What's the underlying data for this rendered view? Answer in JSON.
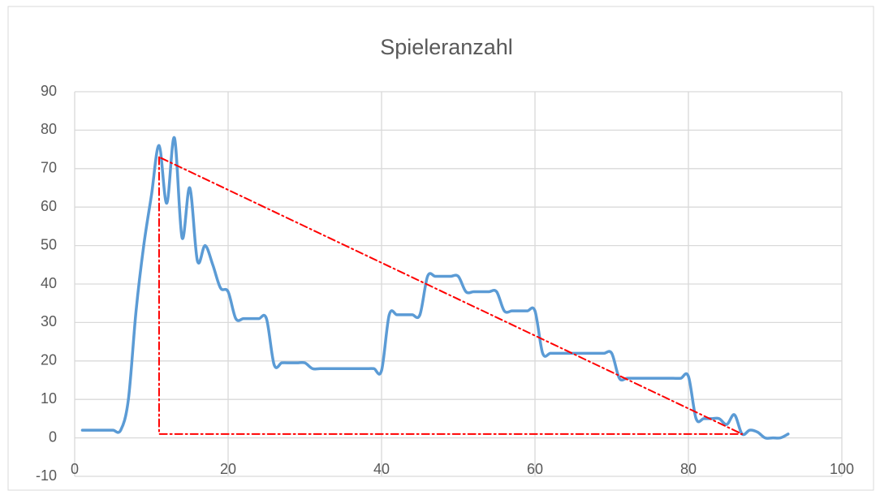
{
  "chart_data": {
    "type": "scatter",
    "title": "Spieleranzahl",
    "series": [
      {
        "color": "#5b9bd5",
        "smooth": true,
        "x": [
          1,
          2,
          3,
          4,
          5,
          6,
          7,
          8,
          9,
          10,
          11,
          12,
          13,
          14,
          15,
          16,
          17,
          18,
          19,
          20,
          21,
          22,
          23,
          24,
          25,
          26,
          27,
          28,
          29,
          30,
          31,
          32,
          33,
          34,
          35,
          36,
          37,
          38,
          39,
          40,
          41,
          42,
          43,
          44,
          45,
          46,
          47,
          48,
          49,
          50,
          51,
          52,
          53,
          54,
          55,
          56,
          57,
          58,
          59,
          60,
          61,
          62,
          63,
          64,
          65,
          66,
          67,
          68,
          69,
          70,
          71,
          72,
          73,
          74,
          75,
          76,
          77,
          78,
          79,
          80,
          81,
          82,
          83,
          84,
          85,
          86,
          87,
          88,
          89,
          90,
          91,
          92,
          93
        ],
        "values": [
          2,
          2,
          2,
          2,
          2,
          2,
          10,
          33,
          50,
          63,
          76,
          61,
          78,
          52,
          65,
          46,
          50,
          45,
          39,
          38,
          31,
          31,
          31,
          31,
          31,
          19,
          19.5,
          19.5,
          19.5,
          19.5,
          18,
          18,
          18,
          18,
          18,
          18,
          18,
          18,
          18,
          17.5,
          32,
          32,
          32,
          32,
          32,
          42,
          42,
          42,
          42,
          42,
          38,
          38,
          38,
          38,
          38,
          33,
          33,
          33,
          33,
          33,
          22,
          22,
          22,
          22,
          22,
          22,
          22,
          22,
          22,
          22,
          15.5,
          15.5,
          15.5,
          15.5,
          15.5,
          15.5,
          15.5,
          15.5,
          15.5,
          16,
          5,
          5,
          5,
          5,
          3.5,
          6,
          1,
          2,
          1.5,
          0,
          0,
          0,
          1
        ]
      },
      {
        "color": "#ff0000",
        "dashed": true,
        "smooth": false,
        "x": [
          11,
          11,
          87,
          11
        ],
        "values": [
          73,
          1,
          1,
          73
        ]
      }
    ],
    "xlim": [
      0,
      100
    ],
    "xticks": [
      0,
      20,
      40,
      60,
      80,
      100
    ],
    "ylim": [
      -10,
      90
    ],
    "yticks": [
      -10,
      0,
      10,
      20,
      30,
      40,
      50,
      60,
      70,
      80,
      90
    ],
    "grid": true
  }
}
